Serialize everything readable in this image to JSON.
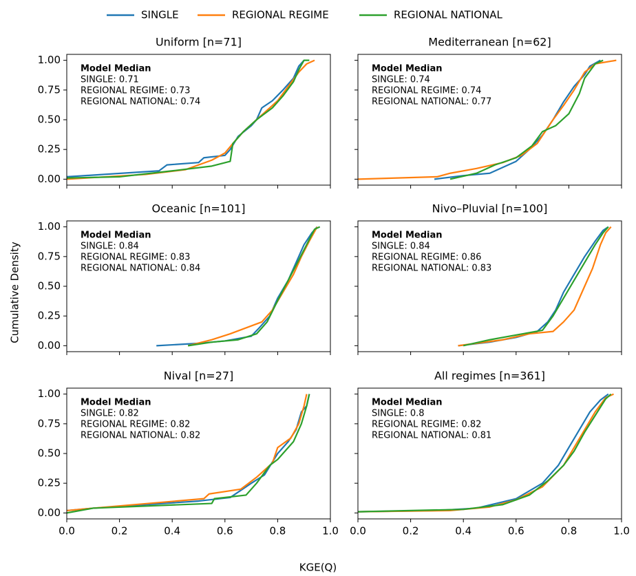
{
  "figure": {
    "xlabel": "KGE(Q)",
    "ylabel": "Cumulative Density"
  },
  "chart_data": [
    {
      "type": "line",
      "title": "Uniform [n=71]",
      "annotation": {
        "title": "Model Median",
        "lines": [
          "SINGLE: 0.71",
          "REGIONAL REGIME: 0.73",
          "REGIONAL NATIONAL: 0.74"
        ]
      },
      "xlim": [
        0,
        1
      ],
      "ylim": [
        -0.05,
        1.05
      ],
      "xticks": [
        0,
        0.2,
        0.4,
        0.6,
        0.8,
        1
      ],
      "yticks": [
        {
          "value": 0,
          "label": "0.00"
        },
        0.25,
        {
          "value": 0.5,
          "label": "0.50"
        },
        0.75,
        {
          "value": 1,
          "label": "1.00"
        }
      ],
      "series": [
        {
          "name": "SINGLE",
          "color": "#1f77b4",
          "x": [
            0,
            0.35,
            0.38,
            0.5,
            0.52,
            0.6,
            0.62,
            0.65,
            0.7,
            0.72,
            0.74,
            0.78,
            0.82,
            0.86,
            0.88,
            0.9
          ],
          "values": [
            0.02,
            0.07,
            0.12,
            0.14,
            0.18,
            0.2,
            0.25,
            0.36,
            0.45,
            0.5,
            0.6,
            0.66,
            0.75,
            0.85,
            0.95,
            1.0
          ]
        },
        {
          "name": "REGIONAL REGIME",
          "color": "#ff7f0e",
          "x": [
            0,
            0.3,
            0.45,
            0.55,
            0.6,
            0.63,
            0.67,
            0.72,
            0.76,
            0.8,
            0.84,
            0.88,
            0.91,
            0.94
          ],
          "values": [
            0.0,
            0.04,
            0.08,
            0.16,
            0.22,
            0.3,
            0.4,
            0.5,
            0.58,
            0.66,
            0.78,
            0.9,
            0.97,
            1.0
          ]
        },
        {
          "name": "REGIONAL NATIONAL",
          "color": "#2ca02c",
          "x": [
            0,
            0.2,
            0.4,
            0.55,
            0.62,
            0.63,
            0.67,
            0.72,
            0.78,
            0.82,
            0.86,
            0.88,
            0.9,
            0.92
          ],
          "values": [
            0.01,
            0.02,
            0.07,
            0.11,
            0.15,
            0.3,
            0.4,
            0.5,
            0.6,
            0.7,
            0.82,
            0.92,
            1.0,
            1.0
          ]
        }
      ]
    },
    {
      "type": "line",
      "title": "Mediterranean [n=62]",
      "annotation": {
        "title": "Model Median",
        "lines": [
          "SINGLE: 0.74",
          "REGIONAL REGIME: 0.74",
          "REGIONAL NATIONAL: 0.77"
        ]
      },
      "xlim": [
        0,
        1
      ],
      "ylim": [
        -0.05,
        1.05
      ],
      "xticks": [
        0,
        0.2,
        0.4,
        0.6,
        0.8,
        1
      ],
      "yticks": [
        0,
        0.25,
        0.5,
        0.75,
        1
      ],
      "series": [
        {
          "name": "SINGLE",
          "color": "#1f77b4",
          "x": [
            0.29,
            0.4,
            0.5,
            0.55,
            0.6,
            0.65,
            0.7,
            0.74,
            0.78,
            0.82,
            0.86,
            0.88,
            0.92
          ],
          "values": [
            0.0,
            0.03,
            0.05,
            0.1,
            0.15,
            0.25,
            0.37,
            0.5,
            0.65,
            0.78,
            0.88,
            0.95,
            1.0
          ]
        },
        {
          "name": "REGIONAL REGIME",
          "color": "#ff7f0e",
          "x": [
            0,
            0.3,
            0.35,
            0.45,
            0.55,
            0.62,
            0.68,
            0.74,
            0.78,
            0.82,
            0.86,
            0.9,
            0.98
          ],
          "values": [
            0.0,
            0.02,
            0.05,
            0.09,
            0.14,
            0.2,
            0.3,
            0.5,
            0.62,
            0.75,
            0.9,
            0.97,
            1.0
          ]
        },
        {
          "name": "REGIONAL NATIONAL",
          "color": "#2ca02c",
          "x": [
            0.35,
            0.45,
            0.52,
            0.6,
            0.66,
            0.7,
            0.75,
            0.8,
            0.84,
            0.86,
            0.9,
            0.93
          ],
          "values": [
            0.0,
            0.05,
            0.12,
            0.18,
            0.28,
            0.4,
            0.45,
            0.55,
            0.72,
            0.85,
            0.97,
            1.0
          ]
        }
      ]
    },
    {
      "type": "line",
      "title": "Oceanic [n=101]",
      "annotation": {
        "title": "Model Median",
        "lines": [
          "SINGLE: 0.84",
          "REGIONAL REGIME: 0.83",
          "REGIONAL NATIONAL: 0.84"
        ]
      },
      "xlim": [
        0,
        1
      ],
      "ylim": [
        -0.05,
        1.05
      ],
      "xticks": [
        0,
        0.2,
        0.4,
        0.6,
        0.8,
        1
      ],
      "yticks": [
        {
          "value": 0,
          "label": "0.00"
        },
        0.25,
        {
          "value": 0.5,
          "label": "0.50"
        },
        0.75,
        {
          "value": 1,
          "label": "1.00"
        }
      ],
      "series": [
        {
          "name": "SINGLE",
          "color": "#1f77b4",
          "x": [
            0.34,
            0.5,
            0.6,
            0.7,
            0.73,
            0.77,
            0.8,
            0.84,
            0.87,
            0.9,
            0.93,
            0.95
          ],
          "values": [
            0.0,
            0.02,
            0.04,
            0.08,
            0.15,
            0.25,
            0.4,
            0.55,
            0.7,
            0.85,
            0.95,
            1.0
          ]
        },
        {
          "name": "REGIONAL REGIME",
          "color": "#ff7f0e",
          "x": [
            0.46,
            0.55,
            0.62,
            0.68,
            0.74,
            0.78,
            0.82,
            0.86,
            0.89,
            0.92,
            0.95
          ],
          "values": [
            0.0,
            0.05,
            0.1,
            0.15,
            0.2,
            0.3,
            0.45,
            0.6,
            0.75,
            0.88,
            1.0
          ]
        },
        {
          "name": "REGIONAL NATIONAL",
          "color": "#2ca02c",
          "x": [
            0.46,
            0.55,
            0.65,
            0.72,
            0.76,
            0.8,
            0.84,
            0.88,
            0.91,
            0.94,
            0.96
          ],
          "values": [
            0.0,
            0.03,
            0.05,
            0.1,
            0.2,
            0.38,
            0.55,
            0.72,
            0.85,
            0.98,
            1.0
          ]
        }
      ]
    },
    {
      "type": "line",
      "title": "Nivo–Pluvial [n=100]",
      "annotation": {
        "title": "Model Median",
        "lines": [
          "SINGLE: 0.84",
          "REGIONAL REGIME: 0.86",
          "REGIONAL NATIONAL: 0.83"
        ]
      },
      "xlim": [
        0,
        1
      ],
      "ylim": [
        -0.05,
        1.05
      ],
      "xticks": [
        0,
        0.2,
        0.4,
        0.6,
        0.8,
        1
      ],
      "yticks": [
        0,
        0.25,
        0.5,
        0.75,
        1
      ],
      "series": [
        {
          "name": "SINGLE",
          "color": "#1f77b4",
          "x": [
            0.38,
            0.5,
            0.6,
            0.68,
            0.72,
            0.75,
            0.78,
            0.82,
            0.86,
            0.9,
            0.93,
            0.95
          ],
          "values": [
            0.0,
            0.03,
            0.07,
            0.12,
            0.2,
            0.3,
            0.45,
            0.6,
            0.75,
            0.88,
            0.97,
            1.0
          ]
        },
        {
          "name": "REGIONAL REGIME",
          "color": "#ff7f0e",
          "x": [
            0.38,
            0.55,
            0.65,
            0.74,
            0.78,
            0.82,
            0.86,
            0.89,
            0.92,
            0.94,
            0.96
          ],
          "values": [
            0.0,
            0.05,
            0.1,
            0.12,
            0.2,
            0.3,
            0.5,
            0.65,
            0.85,
            0.95,
            1.0
          ]
        },
        {
          "name": "REGIONAL NATIONAL",
          "color": "#2ca02c",
          "x": [
            0.4,
            0.5,
            0.6,
            0.7,
            0.74,
            0.78,
            0.82,
            0.86,
            0.9,
            0.93,
            0.95
          ],
          "values": [
            0.0,
            0.05,
            0.09,
            0.13,
            0.25,
            0.4,
            0.55,
            0.7,
            0.85,
            0.95,
            1.0
          ]
        }
      ]
    },
    {
      "type": "line",
      "title": "Nival [n=27]",
      "annotation": {
        "title": "Model Median",
        "lines": [
          "SINGLE: 0.82",
          "REGIONAL REGIME: 0.82",
          "REGIONAL NATIONAL: 0.82"
        ]
      },
      "xlim": [
        0,
        1
      ],
      "ylim": [
        -0.05,
        1.05
      ],
      "xticks": [
        {
          "value": 0,
          "label": "0.0"
        },
        0.2,
        0.4,
        0.6,
        0.8,
        {
          "value": 1,
          "label": "1.0"
        }
      ],
      "yticks": [
        {
          "value": 0,
          "label": "0.00"
        },
        0.25,
        {
          "value": 0.5,
          "label": "0.50"
        },
        0.75,
        {
          "value": 1,
          "label": "1.00"
        }
      ],
      "series": [
        {
          "name": "SINGLE",
          "color": "#1f77b4",
          "x": [
            0,
            0.1,
            0.5,
            0.62,
            0.7,
            0.75,
            0.8,
            0.84,
            0.87,
            0.89,
            0.91,
            0.92
          ],
          "values": [
            0.02,
            0.04,
            0.1,
            0.13,
            0.25,
            0.32,
            0.5,
            0.6,
            0.7,
            0.85,
            0.9,
            1.0
          ]
        },
        {
          "name": "REGIONAL REGIME",
          "color": "#ff7f0e",
          "x": [
            0,
            0.1,
            0.52,
            0.54,
            0.66,
            0.72,
            0.78,
            0.8,
            0.85,
            0.88,
            0.9,
            0.91
          ],
          "values": [
            0.02,
            0.04,
            0.12,
            0.16,
            0.2,
            0.3,
            0.42,
            0.55,
            0.63,
            0.75,
            0.9,
            1.0
          ]
        },
        {
          "name": "REGIONAL NATIONAL",
          "color": "#2ca02c",
          "x": [
            0,
            0.1,
            0.55,
            0.56,
            0.68,
            0.72,
            0.77,
            0.8,
            0.86,
            0.89,
            0.91,
            0.92
          ],
          "values": [
            0.0,
            0.04,
            0.08,
            0.12,
            0.15,
            0.25,
            0.4,
            0.45,
            0.6,
            0.75,
            0.9,
            1.0
          ]
        }
      ]
    },
    {
      "type": "line",
      "title": "All regimes [n=361]",
      "annotation": {
        "title": "Model Median",
        "lines": [
          "SINGLE: 0.8",
          "REGIONAL REGIME: 0.82",
          "REGIONAL NATIONAL: 0.81"
        ]
      },
      "xlim": [
        0,
        1
      ],
      "ylim": [
        -0.05,
        1.05
      ],
      "xticks": [
        {
          "value": 0,
          "label": "0.0"
        },
        0.2,
        0.4,
        0.6,
        0.8,
        {
          "value": 1,
          "label": "1.0"
        }
      ],
      "yticks": [
        0,
        0.25,
        0.5,
        0.75,
        1
      ],
      "series": [
        {
          "name": "SINGLE",
          "color": "#1f77b4",
          "x": [
            0,
            0.3,
            0.45,
            0.6,
            0.7,
            0.76,
            0.8,
            0.84,
            0.88,
            0.92,
            0.95
          ],
          "values": [
            0.01,
            0.02,
            0.04,
            0.12,
            0.25,
            0.4,
            0.55,
            0.7,
            0.85,
            0.95,
            1.0
          ]
        },
        {
          "name": "REGIONAL REGIME",
          "color": "#ff7f0e",
          "x": [
            0,
            0.35,
            0.5,
            0.6,
            0.7,
            0.78,
            0.82,
            0.86,
            0.9,
            0.94,
            0.97
          ],
          "values": [
            0.01,
            0.02,
            0.05,
            0.11,
            0.22,
            0.4,
            0.55,
            0.7,
            0.85,
            0.97,
            1.0
          ]
        },
        {
          "name": "REGIONAL NATIONAL",
          "color": "#2ca02c",
          "x": [
            0,
            0.4,
            0.55,
            0.65,
            0.72,
            0.78,
            0.82,
            0.86,
            0.9,
            0.94,
            0.96
          ],
          "values": [
            0.01,
            0.03,
            0.07,
            0.15,
            0.27,
            0.4,
            0.52,
            0.68,
            0.82,
            0.96,
            1.0
          ]
        }
      ]
    }
  ]
}
